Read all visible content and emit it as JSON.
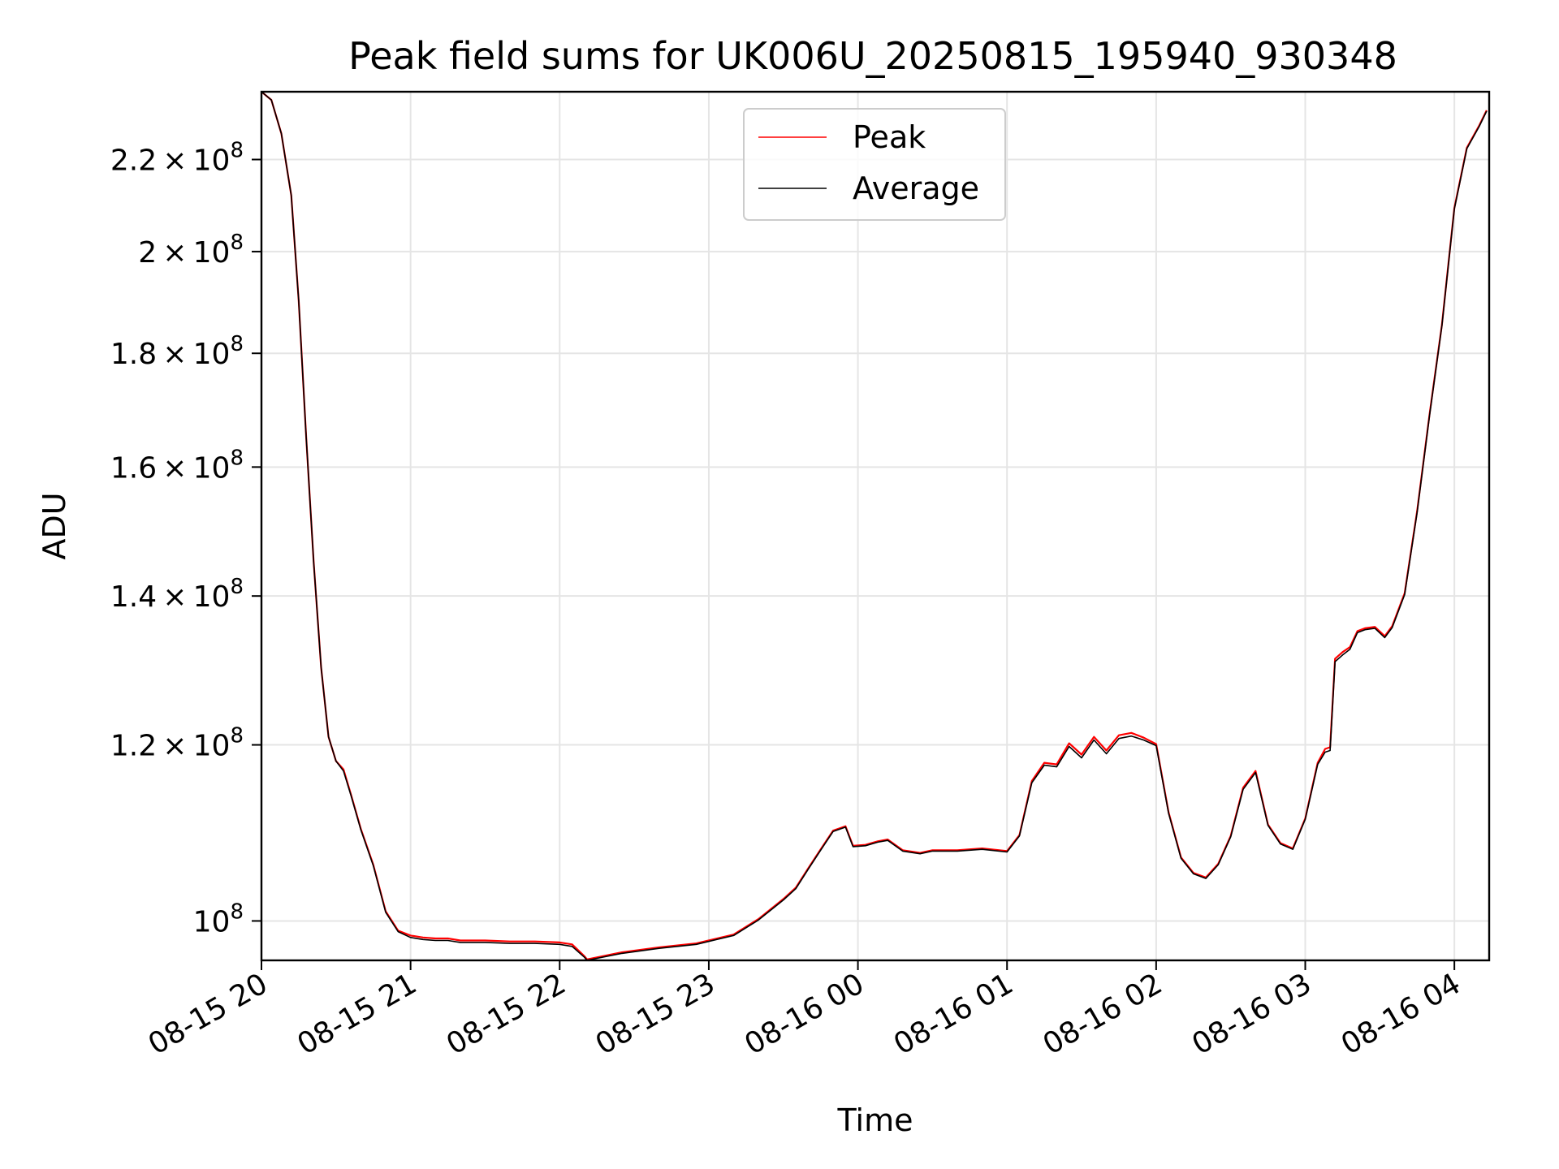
{
  "chart_data": {
    "type": "line",
    "title": "Peak field sums for UK006U_20250815_195940_930348",
    "xlabel": "Time",
    "ylabel": "ADU",
    "x_unit": "datetime",
    "xlim": [
      "2025-08-15 20:00",
      "2025-08-16 04:14"
    ],
    "ylim": [
      96000000,
      236000000
    ],
    "y_scale": "log",
    "grid": true,
    "legend_position": "upper-center",
    "x_ticks": [
      "08-15 20",
      "08-15 21",
      "08-15 22",
      "08-15 23",
      "08-16 00",
      "08-16 01",
      "08-16 02",
      "08-16 03",
      "08-16 04"
    ],
    "x_tick_values": [
      "2025-08-15 20:00",
      "2025-08-15 21:00",
      "2025-08-15 22:00",
      "2025-08-15 23:00",
      "2025-08-16 00:00",
      "2025-08-16 01:00",
      "2025-08-16 02:00",
      "2025-08-16 03:00",
      "2025-08-16 04:00"
    ],
    "y_ticks": [
      {
        "value": 100000000,
        "mantissa": "",
        "exp": "8"
      },
      {
        "value": 120000000,
        "mantissa": "1.2",
        "exp": "8"
      },
      {
        "value": 140000000,
        "mantissa": "1.4",
        "exp": "8"
      },
      {
        "value": 160000000,
        "mantissa": "1.6",
        "exp": "8"
      },
      {
        "value": 180000000,
        "mantissa": "1.8",
        "exp": "8"
      },
      {
        "value": 200000000,
        "mantissa": "2",
        "exp": "8"
      },
      {
        "value": 220000000,
        "mantissa": "2.2",
        "exp": "8"
      }
    ],
    "series": [
      {
        "name": "Peak",
        "color": "#ff0000",
        "x": [
          "2025-08-15 20:00",
          "2025-08-15 20:04",
          "2025-08-15 20:08",
          "2025-08-15 20:12",
          "2025-08-15 20:15",
          "2025-08-15 20:18",
          "2025-08-15 20:21",
          "2025-08-15 20:24",
          "2025-08-15 20:27",
          "2025-08-15 20:30",
          "2025-08-15 20:33",
          "2025-08-15 20:36",
          "2025-08-15 20:40",
          "2025-08-15 20:45",
          "2025-08-15 20:50",
          "2025-08-15 20:55",
          "2025-08-15 21:00",
          "2025-08-15 21:05",
          "2025-08-15 21:10",
          "2025-08-15 21:15",
          "2025-08-15 21:20",
          "2025-08-15 21:30",
          "2025-08-15 21:40",
          "2025-08-15 21:50",
          "2025-08-15 22:00",
          "2025-08-15 22:05",
          "2025-08-15 22:10",
          "2025-08-15 22:11",
          "2025-08-15 22:15",
          "2025-08-15 22:25",
          "2025-08-15 22:40",
          "2025-08-15 22:55",
          "2025-08-15 23:10",
          "2025-08-15 23:20",
          "2025-08-15 23:30",
          "2025-08-15 23:35",
          "2025-08-15 23:40",
          "2025-08-15 23:45",
          "2025-08-15 23:50",
          "2025-08-15 23:55",
          "2025-08-15 23:58",
          "2025-08-16 00:03",
          "2025-08-16 00:08",
          "2025-08-16 00:12",
          "2025-08-16 00:18",
          "2025-08-16 00:25",
          "2025-08-16 00:30",
          "2025-08-16 00:40",
          "2025-08-16 00:50",
          "2025-08-16 01:00",
          "2025-08-16 01:05",
          "2025-08-16 01:10",
          "2025-08-16 01:15",
          "2025-08-16 01:20",
          "2025-08-16 01:25",
          "2025-08-16 01:30",
          "2025-08-16 01:35",
          "2025-08-16 01:40",
          "2025-08-16 01:45",
          "2025-08-16 01:50",
          "2025-08-16 01:55",
          "2025-08-16 02:00",
          "2025-08-16 02:05",
          "2025-08-16 02:10",
          "2025-08-16 02:15",
          "2025-08-16 02:20",
          "2025-08-16 02:25",
          "2025-08-16 02:30",
          "2025-08-16 02:35",
          "2025-08-16 02:40",
          "2025-08-16 02:45",
          "2025-08-16 02:50",
          "2025-08-16 02:55",
          "2025-08-16 03:00",
          "2025-08-16 03:05",
          "2025-08-16 03:08",
          "2025-08-16 03:10",
          "2025-08-16 03:12",
          "2025-08-16 03:15",
          "2025-08-16 03:18",
          "2025-08-16 03:21",
          "2025-08-16 03:24",
          "2025-08-16 03:28",
          "2025-08-16 03:32",
          "2025-08-16 03:35",
          "2025-08-16 03:40",
          "2025-08-16 03:45",
          "2025-08-16 03:50",
          "2025-08-16 03:55",
          "2025-08-16 04:00",
          "2025-08-16 04:05",
          "2025-08-16 04:10",
          "2025-08-16 04:13"
        ],
        "values": [
          236000000,
          234000000,
          226000000,
          212000000,
          190000000,
          165000000,
          145000000,
          130000000,
          121000000,
          118000000,
          117000000,
          114000000,
          110000000,
          106000000,
          101000000,
          99000000,
          98500000,
          98300000,
          98200000,
          98200000,
          98000000,
          98000000,
          97900000,
          97900000,
          97800000,
          97600000,
          96400000,
          96100000,
          96300000,
          96800000,
          97300000,
          97700000,
          98600000,
          100200000,
          102300000,
          103500000,
          105600000,
          107700000,
          109800000,
          110300000,
          108100000,
          108200000,
          108600000,
          108800000,
          107600000,
          107300000,
          107600000,
          107600000,
          107800000,
          107500000,
          109300000,
          115600000,
          117800000,
          117600000,
          120200000,
          118800000,
          121000000,
          119300000,
          121200000,
          121500000,
          120900000,
          120100000,
          111900000,
          106800000,
          105100000,
          104600000,
          106100000,
          109200000,
          114800000,
          116800000,
          110500000,
          108400000,
          107800000,
          111200000,
          117800000,
          119500000,
          119700000,
          131200000,
          132100000,
          132800000,
          135000000,
          135400000,
          135600000,
          134300000,
          135700000,
          140400000,
          152800000,
          168900000,
          185400000,
          209200000,
          222700000,
          227900000,
          231500000
        ]
      },
      {
        "name": "Average",
        "color": "#000000",
        "x": [
          "2025-08-15 20:00",
          "2025-08-15 20:04",
          "2025-08-15 20:08",
          "2025-08-15 20:12",
          "2025-08-15 20:15",
          "2025-08-15 20:18",
          "2025-08-15 20:21",
          "2025-08-15 20:24",
          "2025-08-15 20:27",
          "2025-08-15 20:30",
          "2025-08-15 20:33",
          "2025-08-15 20:36",
          "2025-08-15 20:40",
          "2025-08-15 20:45",
          "2025-08-15 20:50",
          "2025-08-15 20:55",
          "2025-08-15 21:00",
          "2025-08-15 21:05",
          "2025-08-15 21:10",
          "2025-08-15 21:15",
          "2025-08-15 21:20",
          "2025-08-15 21:30",
          "2025-08-15 21:40",
          "2025-08-15 21:50",
          "2025-08-15 22:00",
          "2025-08-15 22:05",
          "2025-08-15 22:10",
          "2025-08-15 22:11",
          "2025-08-15 22:15",
          "2025-08-15 22:25",
          "2025-08-15 22:40",
          "2025-08-15 22:55",
          "2025-08-15 23:10",
          "2025-08-15 23:20",
          "2025-08-15 23:30",
          "2025-08-15 23:35",
          "2025-08-15 23:40",
          "2025-08-15 23:45",
          "2025-08-15 23:50",
          "2025-08-15 23:55",
          "2025-08-15 23:58",
          "2025-08-16 00:03",
          "2025-08-16 00:08",
          "2025-08-16 00:12",
          "2025-08-16 00:18",
          "2025-08-16 00:25",
          "2025-08-16 00:30",
          "2025-08-16 00:40",
          "2025-08-16 00:50",
          "2025-08-16 01:00",
          "2025-08-16 01:05",
          "2025-08-16 01:10",
          "2025-08-16 01:15",
          "2025-08-16 01:20",
          "2025-08-16 01:25",
          "2025-08-16 01:30",
          "2025-08-16 01:35",
          "2025-08-16 01:40",
          "2025-08-16 01:45",
          "2025-08-16 01:50",
          "2025-08-16 01:55",
          "2025-08-16 02:00",
          "2025-08-16 02:05",
          "2025-08-16 02:10",
          "2025-08-16 02:15",
          "2025-08-16 02:20",
          "2025-08-16 02:25",
          "2025-08-16 02:30",
          "2025-08-16 02:35",
          "2025-08-16 02:40",
          "2025-08-16 02:45",
          "2025-08-16 02:50",
          "2025-08-16 02:55",
          "2025-08-16 03:00",
          "2025-08-16 03:05",
          "2025-08-16 03:08",
          "2025-08-16 03:10",
          "2025-08-16 03:12",
          "2025-08-16 03:15",
          "2025-08-16 03:18",
          "2025-08-16 03:21",
          "2025-08-16 03:24",
          "2025-08-16 03:28",
          "2025-08-16 03:32",
          "2025-08-16 03:35",
          "2025-08-16 03:40",
          "2025-08-16 03:45",
          "2025-08-16 03:50",
          "2025-08-16 03:55",
          "2025-08-16 04:00",
          "2025-08-16 04:05",
          "2025-08-16 04:10",
          "2025-08-16 04:13"
        ],
        "values": [
          236000000,
          234000000,
          226000000,
          212000000,
          190000000,
          165000000,
          145000000,
          130000000,
          121000000,
          118000000,
          116800000,
          113900000,
          109900000,
          105900000,
          100900000,
          98900000,
          98300000,
          98100000,
          98000000,
          98000000,
          97800000,
          97800000,
          97700000,
          97700000,
          97600000,
          97400000,
          96300000,
          96000000,
          96200000,
          96700000,
          97200000,
          97600000,
          98500000,
          100100000,
          102200000,
          103400000,
          105500000,
          107600000,
          109700000,
          110200000,
          108000000,
          108100000,
          108500000,
          108700000,
          107500000,
          107200000,
          107500000,
          107500000,
          107700000,
          107400000,
          109200000,
          115400000,
          117500000,
          117300000,
          119800000,
          118400000,
          120600000,
          118900000,
          120800000,
          121100000,
          120600000,
          119900000,
          111800000,
          106700000,
          105000000,
          104500000,
          106000000,
          109100000,
          114600000,
          116600000,
          110400000,
          108300000,
          107700000,
          111100000,
          117600000,
          119100000,
          119300000,
          130800000,
          131700000,
          132500000,
          134800000,
          135200000,
          135400000,
          134100000,
          135500000,
          140200000,
          152600000,
          168700000,
          185200000,
          209000000,
          222500000,
          227700000,
          231300000
        ]
      }
    ]
  }
}
